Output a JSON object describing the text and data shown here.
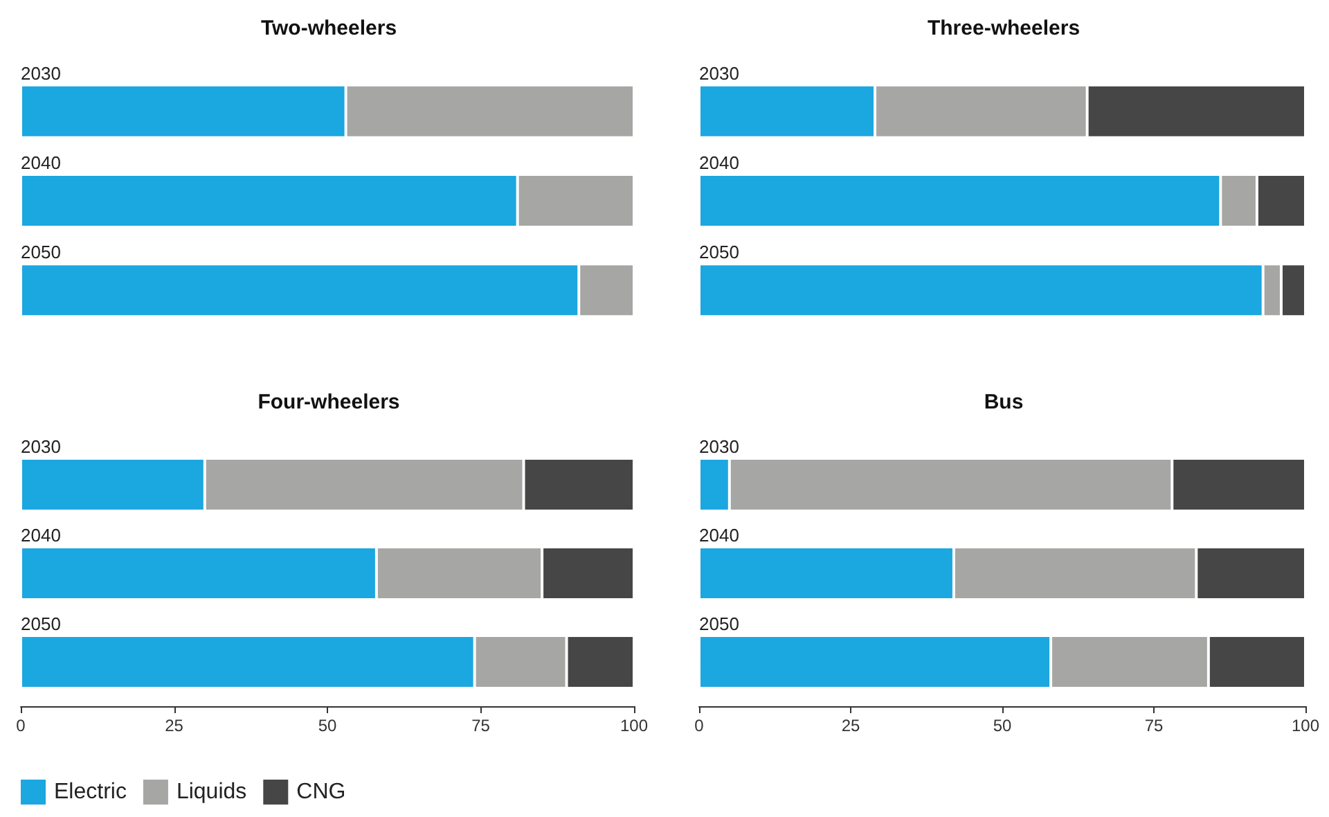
{
  "chart_data": [
    {
      "type": "bar",
      "title": "Two-wheelers",
      "orientation": "horizontal",
      "stacked": true,
      "categories": [
        "2030",
        "2040",
        "2050"
      ],
      "xlim": [
        0,
        100
      ],
      "xticks": [
        0,
        25,
        50,
        75,
        100
      ],
      "tick_labels": "y",
      "grid": false,
      "legend": false,
      "series": [
        {
          "color": "#1ba7e0",
          "values": [
            53,
            81,
            91
          ]
        },
        {
          "color": "#a6a6a4",
          "values": [
            47,
            19,
            9
          ]
        }
      ]
    },
    {
      "type": "bar",
      "title": "Three-wheelers",
      "orientation": "horizontal",
      "stacked": true,
      "categories": [
        "2030",
        "2040",
        "2050"
      ],
      "xlim": [
        0,
        100
      ],
      "xticks": [
        0,
        25,
        50,
        75,
        100
      ],
      "tick_labels": "y",
      "grid": false,
      "legend": false,
      "series": [
        {
          "color": "#1ba7e0",
          "values": [
            29,
            86,
            93
          ]
        },
        {
          "color": "#a6a6a4",
          "values": [
            35,
            6,
            3
          ]
        },
        {
          "color": "#464646",
          "values": [
            36,
            8,
            4
          ]
        }
      ]
    },
    {
      "type": "bar",
      "title": "Four-wheelers",
      "orientation": "horizontal",
      "stacked": true,
      "categories": [
        "2030",
        "2040",
        "2050"
      ],
      "xlim": [
        0,
        100
      ],
      "xticks": [
        0,
        25,
        50,
        75,
        100
      ],
      "grid": false,
      "legend": "bottom left",
      "series": [
        {
          "name": "Electric",
          "color": "#1ba7e0",
          "values": [
            30,
            58,
            74
          ]
        },
        {
          "name": "Liquids",
          "color": "#a6a6a4",
          "values": [
            52,
            27,
            15
          ]
        },
        {
          "name": "CNG",
          "color": "#464646",
          "values": [
            18,
            15,
            11
          ]
        }
      ]
    },
    {
      "type": "bar",
      "title": "Bus",
      "orientation": "horizontal",
      "stacked": true,
      "categories": [
        "2030",
        "2040",
        "2050"
      ],
      "xlim": [
        0,
        100
      ],
      "xticks": [
        0,
        25,
        50,
        75,
        100
      ],
      "grid": false,
      "legend": false,
      "series": [
        {
          "color": "#1ba7e0",
          "values": [
            5,
            42,
            58
          ]
        },
        {
          "color": "#a6a6a4",
          "values": [
            73,
            40,
            26
          ]
        },
        {
          "color": "#464646",
          "values": [
            22,
            18,
            16
          ]
        }
      ]
    }
  ]
}
